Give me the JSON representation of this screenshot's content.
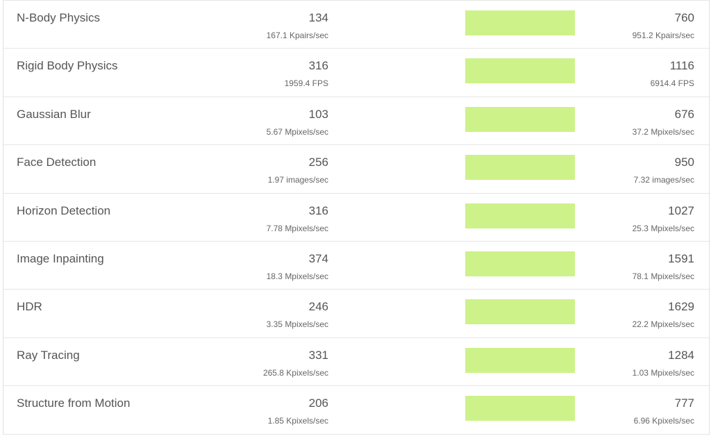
{
  "colors": {
    "bar": "#cdf28a",
    "text": "#555555",
    "border": "#e6e6e6"
  },
  "rows": [
    {
      "name": "N-Body Physics",
      "score_a": "134",
      "rate_a": "167.1 Kpairs/sec",
      "score_b": "760",
      "rate_b": "951.2 Kpairs/sec"
    },
    {
      "name": "Rigid Body Physics",
      "score_a": "316",
      "rate_a": "1959.4 FPS",
      "score_b": "1116",
      "rate_b": "6914.4 FPS"
    },
    {
      "name": "Gaussian Blur",
      "score_a": "103",
      "rate_a": "5.67 Mpixels/sec",
      "score_b": "676",
      "rate_b": "37.2 Mpixels/sec"
    },
    {
      "name": "Face Detection",
      "score_a": "256",
      "rate_a": "1.97 images/sec",
      "score_b": "950",
      "rate_b": "7.32 images/sec"
    },
    {
      "name": "Horizon Detection",
      "score_a": "316",
      "rate_a": "7.78 Mpixels/sec",
      "score_b": "1027",
      "rate_b": "25.3 Mpixels/sec"
    },
    {
      "name": "Image Inpainting",
      "score_a": "374",
      "rate_a": "18.3 Mpixels/sec",
      "score_b": "1591",
      "rate_b": "78.1 Mpixels/sec"
    },
    {
      "name": "HDR",
      "score_a": "246",
      "rate_a": "3.35 Mpixels/sec",
      "score_b": "1629",
      "rate_b": "22.2 Mpixels/sec"
    },
    {
      "name": "Ray Tracing",
      "score_a": "331",
      "rate_a": "265.8 Kpixels/sec",
      "score_b": "1284",
      "rate_b": "1.03 Mpixels/sec"
    },
    {
      "name": "Structure from Motion",
      "score_a": "206",
      "rate_a": "1.85 Kpixels/sec",
      "score_b": "777",
      "rate_b": "6.96 Kpixels/sec"
    }
  ]
}
